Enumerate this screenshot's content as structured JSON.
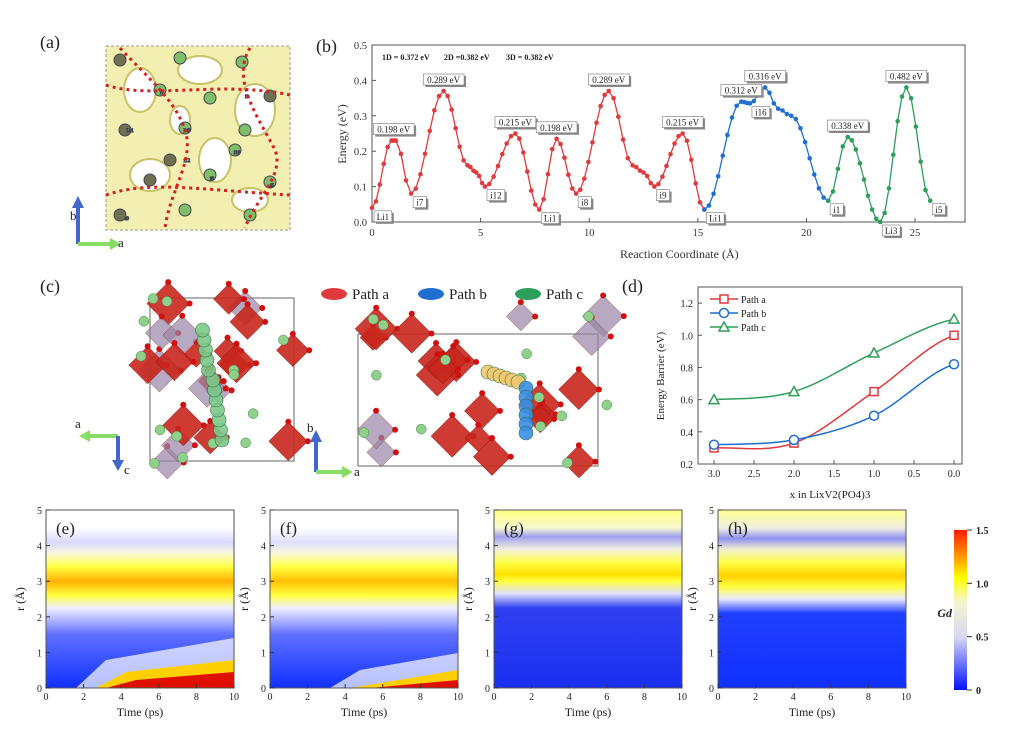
{
  "panels": {
    "a": {
      "label": "(a)",
      "axes": {
        "b": "b",
        "a": "a"
      },
      "site_labels": [
        "Li1",
        "Li3",
        "i1",
        "i5",
        "i7",
        "i8",
        "i9",
        "i12",
        "i16"
      ]
    },
    "b": {
      "label": "(b)"
    },
    "c": {
      "label": "(c)",
      "legend": [
        "Path a",
        "Path b",
        "Path c"
      ],
      "axes_left": {
        "a": "a",
        "c": "c"
      },
      "axes_right": {
        "b": "b",
        "a": "a"
      }
    },
    "d": {
      "label": "(d)"
    },
    "e": {
      "label": "(e)"
    },
    "f": {
      "label": "(f)"
    },
    "g": {
      "label": "(g)"
    },
    "h": {
      "label": "(h)"
    }
  },
  "colors": {
    "path_a": "#e03a3e",
    "path_b": "#1f6fd1",
    "path_c": "#2e9e5b",
    "iso": "#e6e08a"
  },
  "chart_data": [
    {
      "id": "b",
      "type": "line",
      "xlabel": "Reaction Coordinate (Å)",
      "ylabel": "Energy (eV)",
      "xlim": [
        0,
        27.3
      ],
      "ylim": [
        0,
        0.5
      ],
      "xticks": [
        "0",
        "5",
        "10",
        "15",
        "20",
        "25"
      ],
      "yticks": [
        "0.0",
        "0.1",
        "0.2",
        "0.3",
        "0.4",
        "0.5"
      ],
      "legend_text": [
        {
          "name": "1D",
          "text": "1D = 0.372 eV",
          "color": "#e03a3e"
        },
        {
          "name": "2D",
          "text": "2D =0.382 eV",
          "color": "#1f6fd1"
        },
        {
          "name": "3D",
          "text": "3D = 0.382 eV",
          "color": "#2e9e5b"
        }
      ],
      "series": [
        {
          "name": "1D",
          "color": "#e03a3e",
          "points": [
            [
              0,
              0.04
            ],
            [
              0.9,
              0.23
            ],
            [
              1.1,
              0.23
            ],
            [
              1.8,
              0.08
            ],
            [
              3.3,
              0.37
            ],
            [
              4.4,
              0.16
            ],
            [
              4.8,
              0.14
            ],
            [
              5.2,
              0.1
            ],
            [
              6.6,
              0.25
            ],
            [
              7.7,
              0.035
            ],
            [
              8.5,
              0.235
            ],
            [
              9.4,
              0.08
            ],
            [
              10.9,
              0.37
            ],
            [
              12.0,
              0.16
            ],
            [
              12.5,
              0.14
            ],
            [
              13.0,
              0.1
            ],
            [
              14.3,
              0.25
            ],
            [
              15.3,
              0.035
            ]
          ]
        },
        {
          "name": "2D",
          "color": "#1f6fd1",
          "points": [
            [
              15.3,
              0.035
            ],
            [
              17.0,
              0.34
            ],
            [
              17.4,
              0.335
            ],
            [
              18.1,
              0.38
            ],
            [
              18.7,
              0.32
            ],
            [
              19.3,
              0.3
            ],
            [
              21.0,
              0.06
            ]
          ]
        },
        {
          "name": "3D",
          "color": "#2e9e5b",
          "points": [
            [
              21.0,
              0.06
            ],
            [
              21.9,
              0.24
            ],
            [
              23.4,
              0.0
            ],
            [
              24.6,
              0.38
            ],
            [
              25.7,
              0.06
            ]
          ]
        }
      ],
      "annotations": [
        {
          "text": "0.198 eV",
          "x": 1.0,
          "y": 0.23,
          "pos": "above"
        },
        {
          "text": "0.289 eV",
          "x": 3.3,
          "y": 0.37,
          "pos": "above"
        },
        {
          "text": "0.215 eV",
          "x": 6.6,
          "y": 0.25,
          "pos": "above"
        },
        {
          "text": "0.198 eV",
          "x": 8.5,
          "y": 0.235,
          "pos": "above"
        },
        {
          "text": "0.289 eV",
          "x": 10.9,
          "y": 0.37,
          "pos": "above"
        },
        {
          "text": "0.215 eV",
          "x": 14.3,
          "y": 0.25,
          "pos": "above"
        },
        {
          "text": "0.312 eV",
          "x": 17.0,
          "y": 0.34,
          "pos": "above"
        },
        {
          "text": "0.316 eV",
          "x": 18.1,
          "y": 0.38,
          "pos": "above"
        },
        {
          "text": "0.338 eV",
          "x": 21.9,
          "y": 0.24,
          "pos": "above"
        },
        {
          "text": "0.482 eV",
          "x": 24.6,
          "y": 0.38,
          "pos": "above"
        },
        {
          "text": "Li1",
          "x": 0,
          "y": 0.04,
          "pos": "below"
        },
        {
          "text": "i7",
          "x": 1.8,
          "y": 0.08,
          "pos": "below"
        },
        {
          "text": "i12",
          "x": 5.2,
          "y": 0.1,
          "pos": "below"
        },
        {
          "text": "Li1",
          "x": 7.7,
          "y": 0.035,
          "pos": "below"
        },
        {
          "text": "i8",
          "x": 9.4,
          "y": 0.08,
          "pos": "below"
        },
        {
          "text": "i9",
          "x": 13.0,
          "y": 0.1,
          "pos": "below"
        },
        {
          "text": "Li1",
          "x": 15.3,
          "y": 0.035,
          "pos": "below"
        },
        {
          "text": "i16",
          "x": 17.4,
          "y": 0.335,
          "pos": "below"
        },
        {
          "text": "i1",
          "x": 21.0,
          "y": 0.06,
          "pos": "below"
        },
        {
          "text": "Li3",
          "x": 23.4,
          "y": 0.0,
          "pos": "below"
        },
        {
          "text": "i5",
          "x": 25.7,
          "y": 0.06,
          "pos": "below"
        }
      ]
    },
    {
      "id": "d",
      "type": "line",
      "xlabel": "x in LixV2(PO4)3",
      "ylabel": "Energy Barrier (eV)",
      "xlim": [
        3.2,
        -0.1
      ],
      "ylim": [
        0.2,
        1.3
      ],
      "xticks": [
        "3.0",
        "2.5",
        "2.0",
        "1.5",
        "1.0",
        "0.5",
        "0.0"
      ],
      "yticks": [
        "0.2",
        "0.4",
        "0.6",
        "0.8",
        "1.0",
        "1.2"
      ],
      "legend": "top-left",
      "x": [
        3.0,
        2.0,
        1.0,
        0.0
      ],
      "series": [
        {
          "name": "Path a",
          "marker": "square",
          "color": "#e03a3e",
          "values": [
            0.3,
            0.33,
            0.65,
            1.0
          ]
        },
        {
          "name": "Path b",
          "marker": "circle",
          "color": "#1f6fd1",
          "values": [
            0.32,
            0.35,
            0.5,
            0.82
          ]
        },
        {
          "name": "Path c",
          "marker": "triangle",
          "color": "#2e9e5b",
          "values": [
            0.6,
            0.65,
            0.89,
            1.1
          ]
        }
      ]
    },
    {
      "id": "heatmaps",
      "type": "heatmap",
      "xlabel": "Time (ps)",
      "ylabel": "r (Å)",
      "xlim": [
        0,
        10
      ],
      "ylim": [
        0,
        5
      ],
      "xticks": [
        "0",
        "2",
        "4",
        "6",
        "8",
        "10"
      ],
      "yticks": [
        "0",
        "1",
        "2",
        "3",
        "4",
        "5"
      ],
      "colorbar": {
        "label": "Gd",
        "ticks": [
          "0",
          "0.5",
          "1.0",
          "1.5"
        ],
        "range": [
          0,
          1.5
        ],
        "colors": [
          "#0000ff",
          "#ffffff",
          "#ffff00",
          "#ff0000"
        ]
      },
      "panels": [
        "(e)",
        "(f)",
        "(g)",
        "(h)"
      ]
    }
  ]
}
